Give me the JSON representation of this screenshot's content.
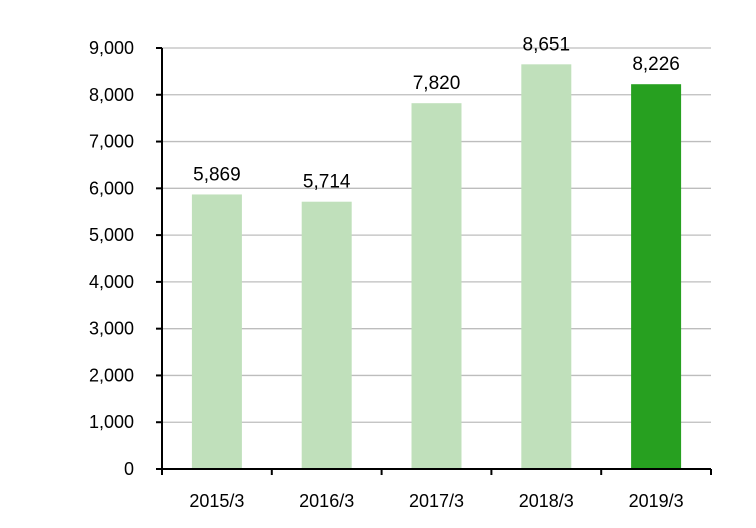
{
  "chart_data": {
    "type": "bar",
    "categories": [
      "2015/3",
      "2016/3",
      "2017/3",
      "2018/3",
      "2019/3"
    ],
    "values": [
      5869,
      5714,
      7820,
      8651,
      8226
    ],
    "data_labels": [
      "5,869",
      "5,714",
      "7,820",
      "8,651",
      "8,226"
    ],
    "title": "",
    "xlabel": "",
    "ylabel": "",
    "ylim": [
      0,
      9000
    ],
    "yticks": [
      0,
      1000,
      2000,
      3000,
      4000,
      5000,
      6000,
      7000,
      8000,
      9000
    ],
    "ytick_labels": [
      "0",
      "1,000",
      "2,000",
      "3,000",
      "4,000",
      "5,000",
      "6,000",
      "7,000",
      "8,000",
      "9,000"
    ],
    "grid": true,
    "legend": "none",
    "colors": {
      "bar": "#c0e0bb",
      "highlight": "#27a020",
      "grid": "#bdbdbd",
      "axis": "#000000"
    },
    "highlight_index": 4
  }
}
